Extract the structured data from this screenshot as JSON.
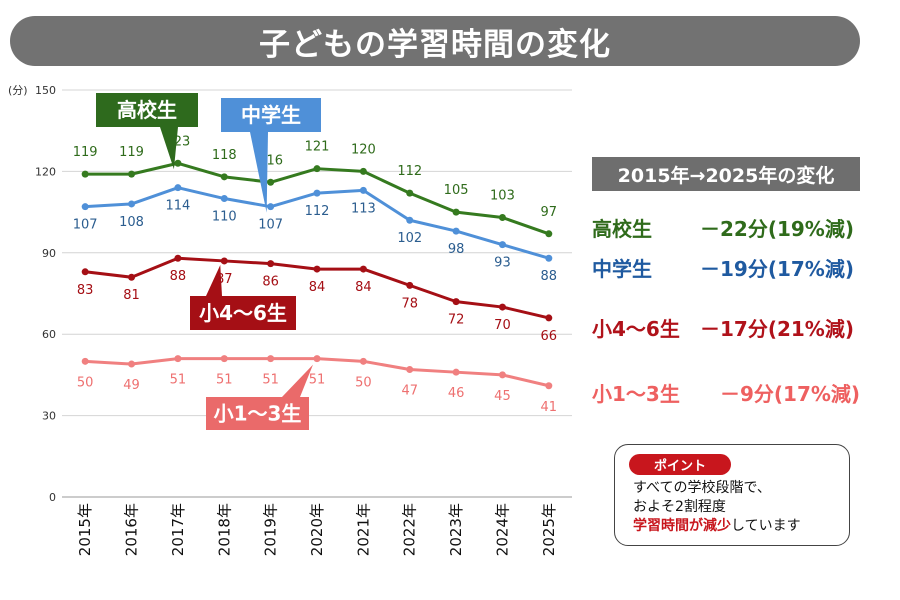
{
  "title": "子どもの学習時間の変化",
  "chart_data": {
    "type": "line",
    "y_unit_label": "(分)",
    "ylim": [
      0,
      150
    ],
    "y_ticks": [
      0,
      30,
      60,
      90,
      120,
      150
    ],
    "categories": [
      "2015年",
      "2016年",
      "2017年",
      "2018年",
      "2019年",
      "2020年",
      "2021年",
      "2022年",
      "2023年",
      "2024年",
      "2025年"
    ],
    "series": [
      {
        "name": "高校生",
        "color": "#357a1f",
        "label_color": "#2f6b1b",
        "values": [
          119,
          119,
          123,
          118,
          116,
          121,
          120,
          112,
          105,
          103,
          97
        ]
      },
      {
        "name": "中学生",
        "color": "#4f90d8",
        "label_color": "#2b5d8f",
        "values": [
          107,
          108,
          114,
          110,
          107,
          112,
          113,
          102,
          98,
          93,
          88
        ]
      },
      {
        "name": "小4～6生",
        "color": "#a50f15",
        "label_color": "#a50f15",
        "values": [
          83,
          81,
          88,
          87,
          86,
          84,
          84,
          78,
          72,
          70,
          66
        ]
      },
      {
        "name": "小1～3生",
        "color": "#f08080",
        "label_color": "#ee7070",
        "values": [
          50,
          49,
          51,
          51,
          51,
          51,
          50,
          47,
          46,
          45,
          41
        ]
      }
    ],
    "grid": true
  },
  "summary": {
    "heading": "2015年→2025年の変化",
    "rows": [
      {
        "name": "高校生",
        "change": "－22分(19%減)",
        "color": "#2f6b1b"
      },
      {
        "name": "中学生",
        "change": "－19分(17%減)",
        "color": "#1f5aa0"
      },
      {
        "name": "小4～6生",
        "change": "－17分(21%減)",
        "color": "#b0121a"
      },
      {
        "name": "小1～3生",
        "change": "　－9分(17%減)",
        "color": "#ee6060"
      }
    ]
  },
  "point": {
    "badge": "ポイント",
    "line1": "すべての学校段階で、",
    "line2": "およそ2割程度",
    "line3_emphasis": "学習時間が減少",
    "line3_rest": "しています"
  }
}
